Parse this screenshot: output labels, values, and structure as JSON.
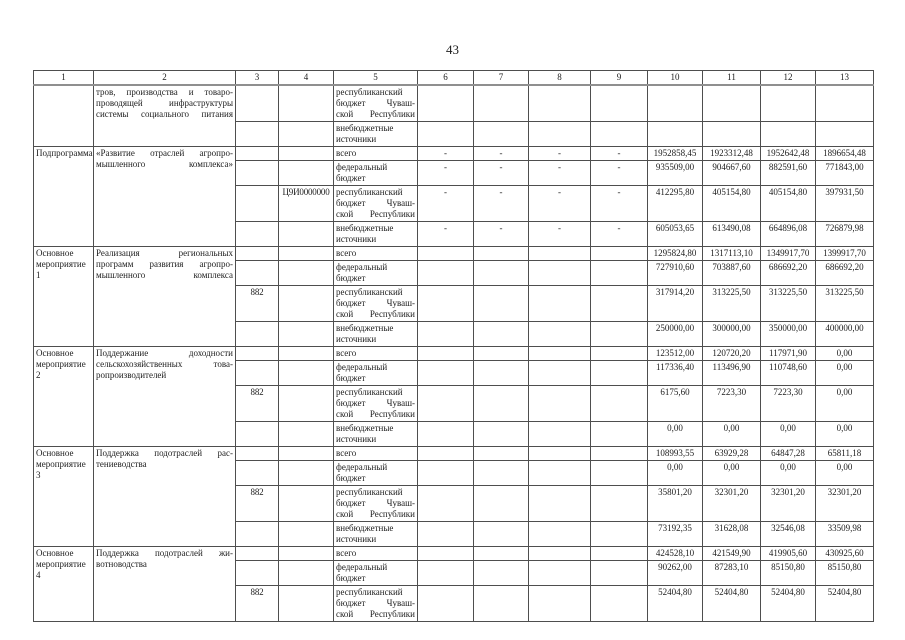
{
  "page_number": "43",
  "table": {
    "column_headers": [
      "1",
      "2",
      "3",
      "4",
      "5",
      "6",
      "7",
      "8",
      "9",
      "10",
      "11",
      "12",
      "13"
    ],
    "groups": [
      {
        "name": "",
        "title": "тров, производства и товаро-\nпроводящей инфраструктуры\nсистемы социального питания",
        "rows": [
          {
            "code3": "",
            "code4": "",
            "source": "республиканский\nбюджет Чуваш-\nской Республики",
            "values": [
              "",
              "",
              "",
              "",
              "",
              "",
              "",
              ""
            ]
          },
          {
            "code3": "",
            "code4": "",
            "source": "внебюджетные\nисточники",
            "values": [
              "",
              "",
              "",
              "",
              "",
              "",
              "",
              ""
            ]
          }
        ]
      },
      {
        "name": "Подпрограмма",
        "title": "«Развитие отраслей агропро-\nмышленного комплекса»",
        "rows": [
          {
            "code3": "",
            "code4": "",
            "source": "всего",
            "values": [
              "-",
              "-",
              "-",
              "-",
              "1952858,45",
              "1923312,48",
              "1952642,48",
              "1896654,48"
            ]
          },
          {
            "code3": "",
            "code4": "",
            "source": "федеральный\nбюджет",
            "values": [
              "-",
              "-",
              "-",
              "-",
              "935509,00",
              "904667,60",
              "882591,60",
              "771843,00"
            ]
          },
          {
            "code3": "",
            "code4": "Ц9И0000000",
            "source": "республиканский\nбюджет Чуваш-\nской Республики",
            "values": [
              "-",
              "-",
              "-",
              "-",
              "412295,80",
              "405154,80",
              "405154,80",
              "397931,50"
            ]
          },
          {
            "code3": "",
            "code4": "",
            "source": "внебюджетные\nисточники",
            "values": [
              "-",
              "-",
              "-",
              "-",
              "605053,65",
              "613490,08",
              "664896,08",
              "726879,98"
            ]
          }
        ]
      },
      {
        "name": "Основное\nмероприятие 1",
        "title": "Реализация региональных\nпрограмм развития агропро-\nмышленного комплекса",
        "rows": [
          {
            "code3": "",
            "code4": "",
            "source": "всего",
            "values": [
              "",
              "",
              "",
              "",
              "1295824,80",
              "1317113,10",
              "1349917,70",
              "1399917,70"
            ]
          },
          {
            "code3": "",
            "code4": "",
            "source": "федеральный\nбюджет",
            "values": [
              "",
              "",
              "",
              "",
              "727910,60",
              "703887,60",
              "686692,20",
              "686692,20"
            ]
          },
          {
            "code3": "882",
            "code4": "",
            "source": "республиканский\nбюджет Чуваш-\nской Республики",
            "values": [
              "",
              "",
              "",
              "",
              "317914,20",
              "313225,50",
              "313225,50",
              "313225,50"
            ]
          },
          {
            "code3": "",
            "code4": "",
            "source": "внебюджетные\nисточники",
            "values": [
              "",
              "",
              "",
              "",
              "250000,00",
              "300000,00",
              "350000,00",
              "400000,00"
            ]
          }
        ]
      },
      {
        "name": "Основное\nмероприятие 2",
        "title": "Поддержание доходности\nсельскохозяйственных това-\nропроизводителей",
        "rows": [
          {
            "code3": "",
            "code4": "",
            "source": "всего",
            "values": [
              "",
              "",
              "",
              "",
              "123512,00",
              "120720,20",
              "117971,90",
              "0,00"
            ]
          },
          {
            "code3": "",
            "code4": "",
            "source": "федеральный\nбюджет",
            "values": [
              "",
              "",
              "",
              "",
              "117336,40",
              "113496,90",
              "110748,60",
              "0,00"
            ]
          },
          {
            "code3": "882",
            "code4": "",
            "source": "республиканский\nбюджет Чуваш-\nской Республики",
            "values": [
              "",
              "",
              "",
              "",
              "6175,60",
              "7223,30",
              "7223,30",
              "0,00"
            ]
          },
          {
            "code3": "",
            "code4": "",
            "source": "внебюджетные\nисточники",
            "values": [
              "",
              "",
              "",
              "",
              "0,00",
              "0,00",
              "0,00",
              "0,00"
            ]
          }
        ]
      },
      {
        "name": "Основное\nмероприятие 3",
        "title": "Поддержка подотраслей рас-\nтениеводства",
        "rows": [
          {
            "code3": "",
            "code4": "",
            "source": "всего",
            "values": [
              "",
              "",
              "",
              "",
              "108993,55",
              "63929,28",
              "64847,28",
              "65811,18"
            ]
          },
          {
            "code3": "",
            "code4": "",
            "source": "федеральный\nбюджет",
            "values": [
              "",
              "",
              "",
              "",
              "0,00",
              "0,00",
              "0,00",
              "0,00"
            ]
          },
          {
            "code3": "882",
            "code4": "",
            "source": "республиканский\nбюджет Чуваш-\nской Республики",
            "values": [
              "",
              "",
              "",
              "",
              "35801,20",
              "32301,20",
              "32301,20",
              "32301,20"
            ]
          },
          {
            "code3": "",
            "code4": "",
            "source": "внебюджетные\nисточники",
            "values": [
              "",
              "",
              "",
              "",
              "73192,35",
              "31628,08",
              "32546,08",
              "33509,98"
            ]
          }
        ]
      },
      {
        "name": "Основное\nмероприятие 4",
        "title": "Поддержка подотраслей жи-\nвотноводства",
        "rows": [
          {
            "code3": "",
            "code4": "",
            "source": "всего",
            "values": [
              "",
              "",
              "",
              "",
              "424528,10",
              "421549,90",
              "419905,60",
              "430925,60"
            ]
          },
          {
            "code3": "",
            "code4": "",
            "source": "федеральный\nбюджет",
            "values": [
              "",
              "",
              "",
              "",
              "90262,00",
              "87283,10",
              "85150,80",
              "85150,80"
            ]
          },
          {
            "code3": "882",
            "code4": "",
            "source": "республиканский\nбюджет Чуваш-\nской Республики",
            "values": [
              "",
              "",
              "",
              "",
              "52404,80",
              "52404,80",
              "52404,80",
              "52404,80"
            ]
          }
        ]
      }
    ]
  }
}
